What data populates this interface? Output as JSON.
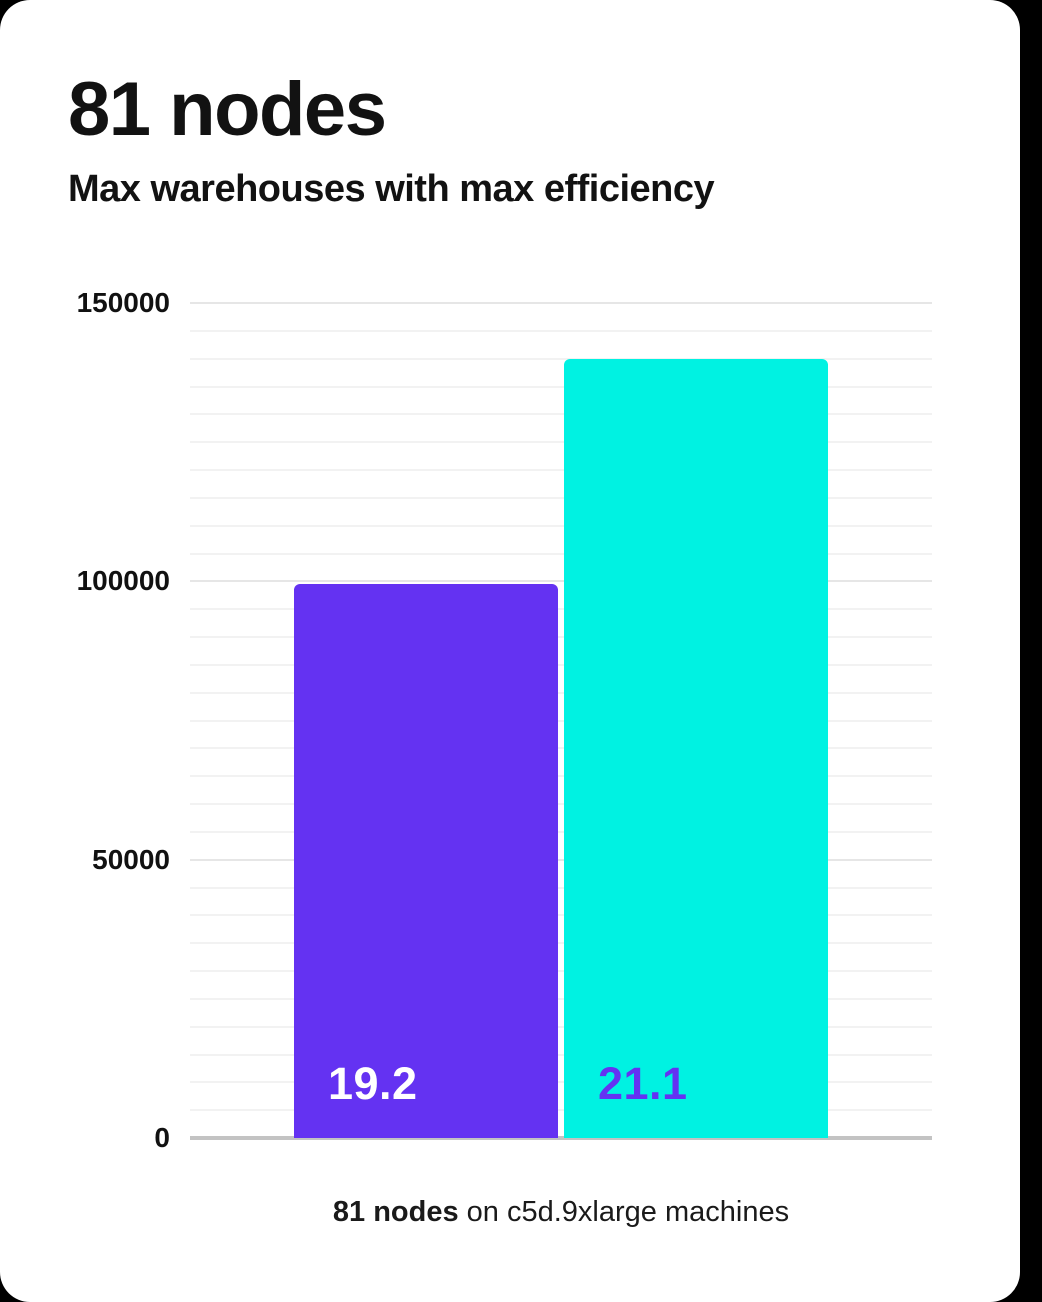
{
  "page": {
    "background_color": "#000000",
    "card_color": "#ffffff"
  },
  "header": {
    "title": "81 nodes",
    "subtitle": "Max warehouses with max efficiency"
  },
  "chart_data": {
    "type": "bar",
    "categories": [
      "19.2",
      "21.1"
    ],
    "values": [
      99500,
      140000
    ],
    "bar_labels": [
      "19.2",
      "21.1"
    ],
    "bar_colors": [
      "#6432f2",
      "#00f2e2"
    ],
    "bar_label_colors": [
      "#ffffff",
      "#6432f2"
    ],
    "title": "81 nodes",
    "subtitle": "Max warehouses with max efficiency",
    "xlabel": "",
    "ylabel": "",
    "ylim": [
      0,
      150000
    ],
    "y_ticks": [
      {
        "value": 0,
        "label": "0"
      },
      {
        "value": 50000,
        "label": "50000"
      },
      {
        "value": 100000,
        "label": "100000"
      },
      {
        "value": 150000,
        "label": "150000"
      }
    ],
    "y_minor_step": 5000,
    "grid": true,
    "legend": false,
    "annotation": "81 nodes on c5d.9xlarge machines"
  },
  "caption": {
    "bold": "81 nodes",
    "rest": " on c5d.9xlarge machines"
  },
  "colors": {
    "purple": "#6432f2",
    "cyan": "#00f2e2",
    "gridline_minor": "#f2f2f2",
    "gridline_major": "#e6e6e6",
    "baseline": "#c3c3c3",
    "text": "#121212"
  }
}
